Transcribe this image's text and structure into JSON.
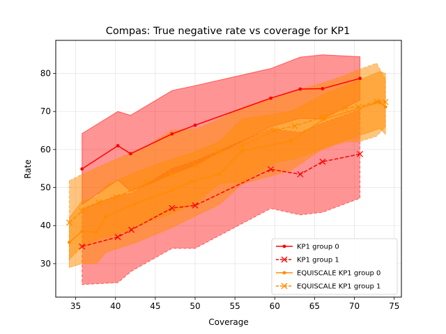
{
  "chart_data": {
    "type": "line",
    "title": "Compas: True negative rate vs coverage for KP1",
    "xlabel": "Coverage",
    "ylabel": "Rate",
    "xlim": [
      32.5,
      75.9
    ],
    "ylim": [
      21.2,
      88.7
    ],
    "xticks": [
      35,
      40,
      45,
      50,
      55,
      60,
      65,
      70,
      75
    ],
    "yticks": [
      30,
      40,
      50,
      60,
      70,
      80
    ],
    "grid": true,
    "legend_position": "lower right",
    "series": [
      {
        "name": "KP1 group 0",
        "color": "#ff0000",
        "linestyle": "solid",
        "marker": "dot",
        "x": [
          35.8,
          40.3,
          41.9,
          47.1,
          50.0,
          59.5,
          63.2,
          66.0,
          70.7
        ],
        "y": [
          54.9,
          61.0,
          58.9,
          64.1,
          66.4,
          73.5,
          75.9,
          76.0,
          78.7
        ],
        "band_upper": [
          64.2,
          70.0,
          69.0,
          75.5,
          76.8,
          81.3,
          84.3,
          84.9,
          84.4
        ],
        "band_lower": [
          45.5,
          52.0,
          49.0,
          53.5,
          56.0,
          66.0,
          68.2,
          68.0,
          73.0
        ]
      },
      {
        "name": "KP1 group 1",
        "color": "#ff0000",
        "linestyle": "dashed",
        "marker": "x",
        "x": [
          35.8,
          40.3,
          42.0,
          47.1,
          50.0,
          59.5,
          63.2,
          66.0,
          70.7
        ],
        "y": [
          34.5,
          37.0,
          38.9,
          44.6,
          45.3,
          54.8,
          53.5,
          56.8,
          58.8
        ],
        "band_upper": [
          44.5,
          48.0,
          48.5,
          55.0,
          57.0,
          65.5,
          64.5,
          67.0,
          70.5
        ],
        "band_lower": [
          24.5,
          25.0,
          28.0,
          34.0,
          34.0,
          44.5,
          42.8,
          43.5,
          47.2
        ]
      },
      {
        "name": "EQUISCALE KP1 group 0",
        "color": "#ff8c00",
        "linestyle": "solid",
        "marker": "dot",
        "x": [
          34.2,
          35.8,
          37.6,
          38.8,
          42.5,
          47.1,
          49.5,
          53.0,
          55.9,
          62.0,
          66.2,
          73.2,
          73.9
        ],
        "y": [
          35.6,
          38.5,
          38.3,
          42.4,
          45.8,
          49.3,
          51.6,
          53.5,
          59.7,
          62.2,
          68.0,
          72.5,
          71.2
        ],
        "band_upper": [
          42.0,
          46.5,
          47.5,
          50.5,
          54.0,
          57.5,
          59.0,
          62.0,
          68.0,
          70.0,
          74.5,
          80.5,
          80.0
        ],
        "band_lower": [
          29.0,
          30.0,
          30.0,
          33.0,
          35.5,
          39.5,
          42.0,
          45.5,
          51.0,
          54.5,
          60.5,
          65.5,
          64.0
        ]
      },
      {
        "name": "EQUISCALE KP1 group 1",
        "color": "#ff8c00",
        "linestyle": "dashed",
        "marker": "x",
        "x": [
          34.2,
          35.8,
          37.9,
          40.1,
          44.0,
          47.0,
          50.2,
          53.0,
          55.9,
          60.0,
          62.5,
          66.0,
          68.8,
          70.5,
          72.8,
          73.9
        ],
        "y": [
          40.8,
          43.8,
          46.1,
          47.5,
          51.2,
          53.5,
          55.8,
          59.5,
          61.0,
          65.1,
          66.2,
          68.5,
          70.9,
          71.2,
          72.6,
          72.5
        ],
        "band_upper": [
          51.8,
          53.5,
          55.5,
          57.5,
          61.0,
          65.0,
          65.5,
          68.0,
          71.0,
          73.5,
          75.5,
          77.5,
          79.5,
          81.0,
          82.7,
          78.5
        ],
        "band_lower": [
          31.0,
          34.5,
          36.5,
          37.5,
          41.0,
          43.0,
          46.0,
          51.0,
          51.5,
          56.5,
          57.5,
          60.0,
          62.0,
          62.0,
          63.5,
          66.0
        ]
      }
    ]
  }
}
